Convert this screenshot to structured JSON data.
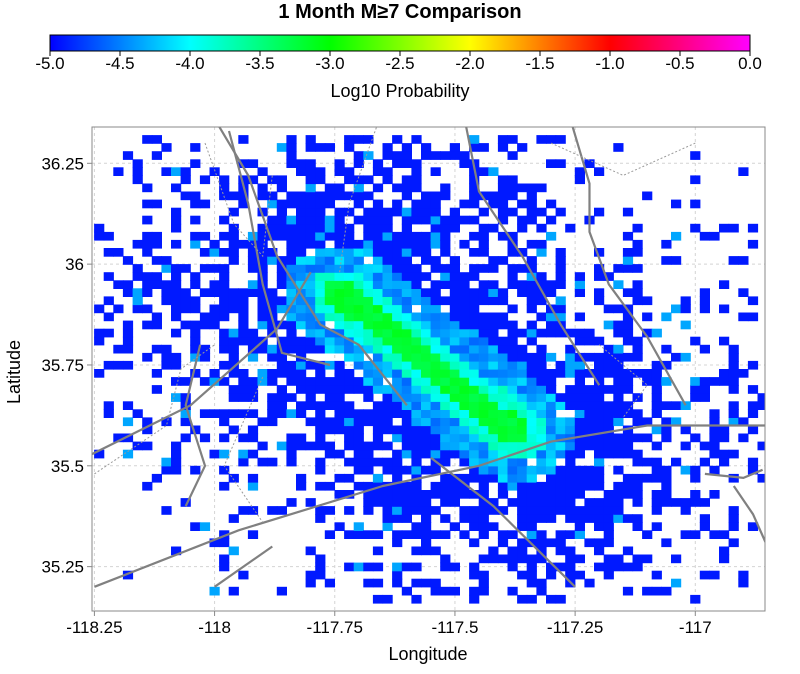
{
  "chart_data": {
    "type": "heatmap",
    "title": "1 Month M≥7 Comparison",
    "colorbar": {
      "label": "Log10 Probability",
      "range": [
        -5.0,
        0.0
      ],
      "ticks": [
        "-5.0",
        "-4.5",
        "-4.0",
        "-3.5",
        "-3.0",
        "-2.5",
        "-2.0",
        "-1.5",
        "-1.0",
        "-0.5",
        "0.0"
      ],
      "colors": [
        "#0000ff",
        "#00ffff",
        "#00ff00",
        "#ffff00",
        "#ff0000",
        "#ff00ff"
      ]
    },
    "xlabel": "Longitude",
    "ylabel": "Latitude",
    "xlim": [
      -118.255,
      -116.855
    ],
    "ylim": [
      35.14,
      36.34
    ],
    "xticks": [
      -118.25,
      -118,
      -117.75,
      -117.5,
      -117.25,
      -117
    ],
    "xtick_labels": [
      "-118.25",
      "-118",
      "-117.75",
      "-117.5",
      "-117.25",
      "-117"
    ],
    "yticks": [
      35.25,
      35.5,
      35.75,
      36,
      36.25
    ],
    "ytick_labels": [
      "35.25",
      "35.5",
      "35.75",
      "36",
      "36.25"
    ],
    "grid": true,
    "cell_size_deg": 0.02,
    "distribution": {
      "type": "elongated-cluster",
      "axis_start": [
        -117.74,
        35.92
      ],
      "axis_end": [
        -117.37,
        35.57
      ],
      "peak_log10": -3.1,
      "background_log10": -4.9
    },
    "overlays": [
      "faults",
      "boundaries"
    ]
  }
}
